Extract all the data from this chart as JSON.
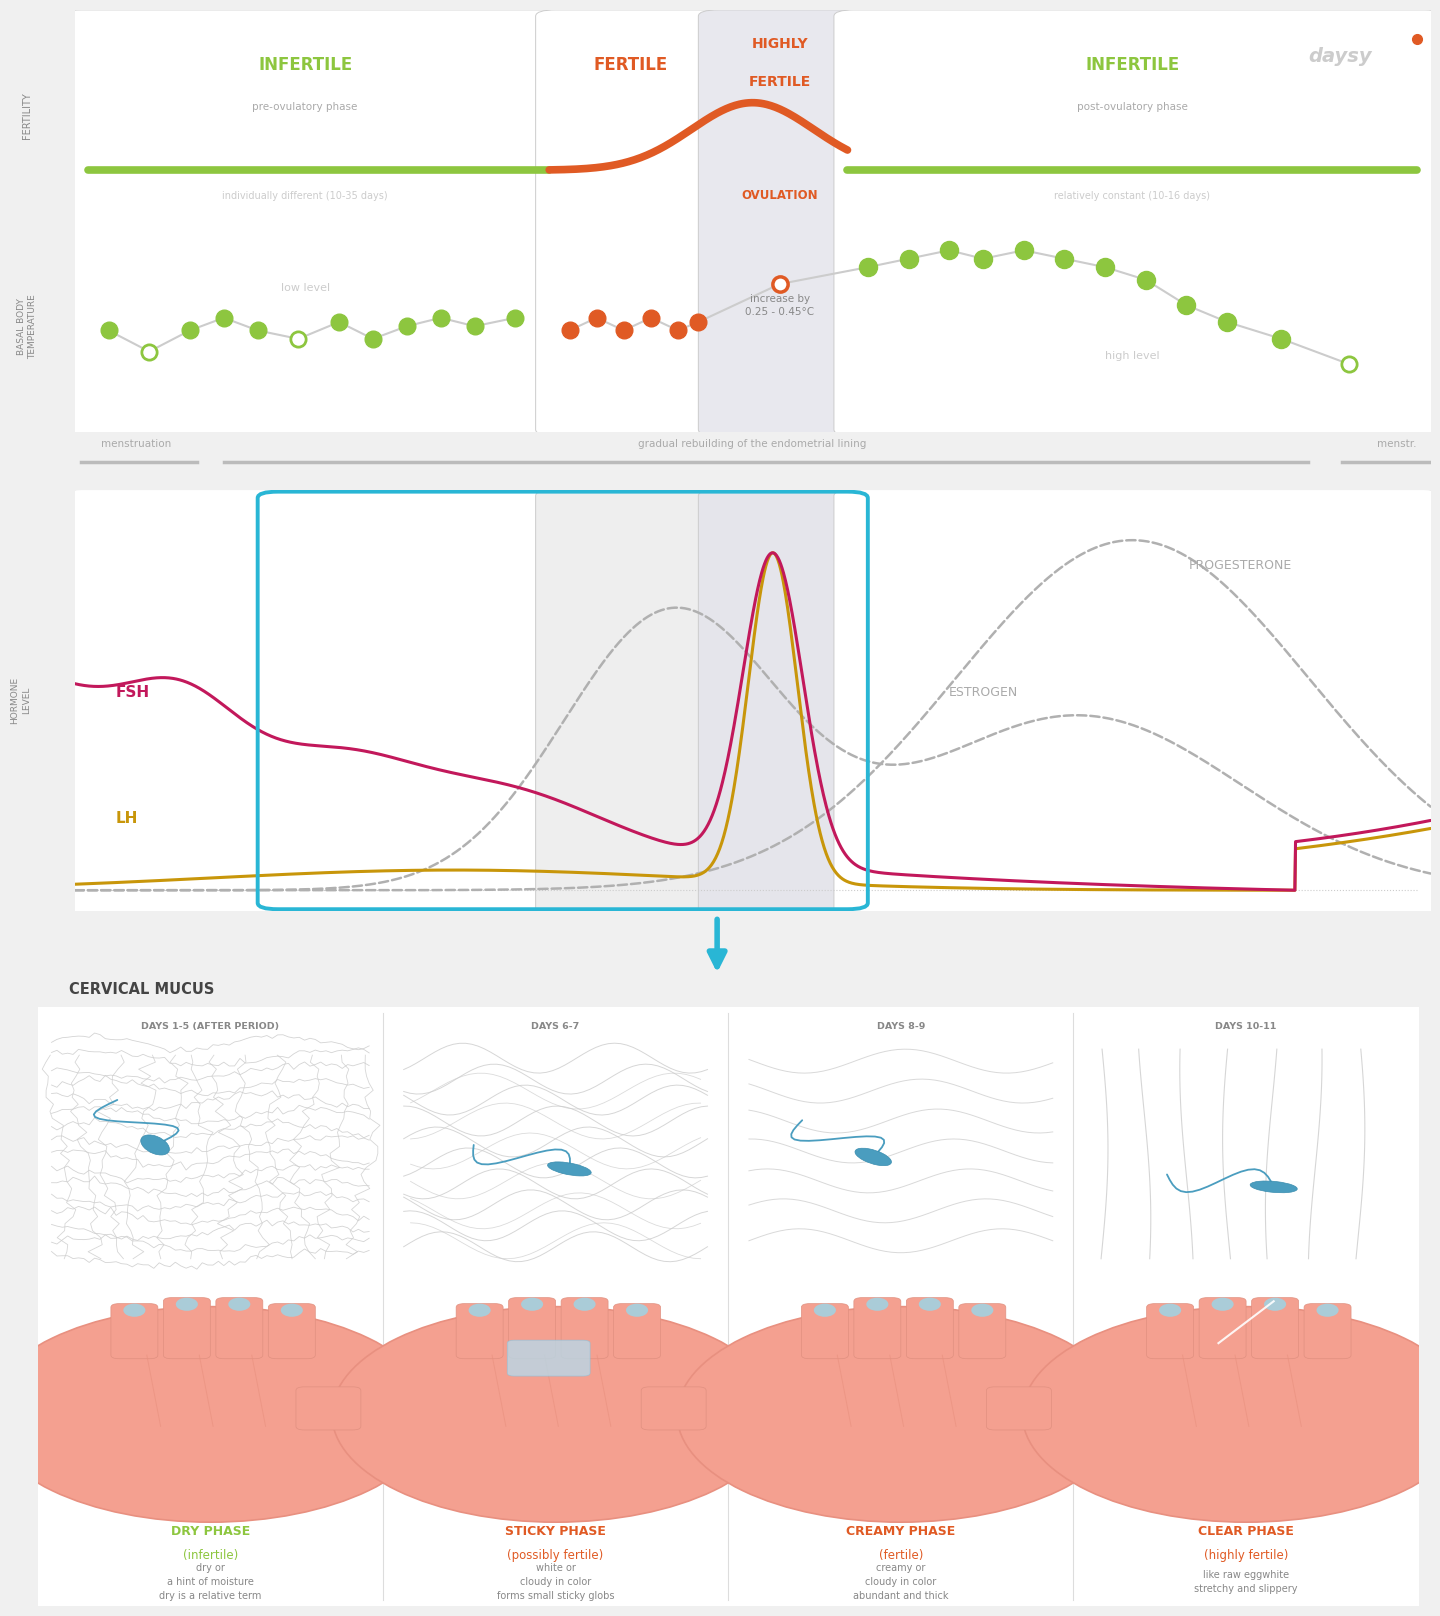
{
  "bg_color": "#f0f0f0",
  "green": "#8dc63f",
  "orange": "#e05a24",
  "blue": "#29b6d5",
  "magenta": "#c2185b",
  "gold": "#c8960a",
  "gray_text": "#aaaaaa",
  "gray_border": "#cccccc",
  "gray_dark": "#666666",
  "cerv_days": [
    "DAYS 1-5 (AFTER PERIOD)",
    "DAYS 6-7",
    "DAYS 8-9",
    "DAYS 10-11"
  ],
  "cerv_phase_names": [
    "DRY PHASE",
    "STICKY PHASE",
    "CREAMY PHASE",
    "CLEAR PHASE"
  ],
  "cerv_phase_sub": [
    "(infertile)",
    "(possibly fertile)",
    "(fertile)",
    "(highly fertile)"
  ],
  "cerv_phase_colors": [
    "#8dc63f",
    "#e05a24",
    "#e05a24",
    "#e05a24"
  ],
  "cerv_desc": [
    "dry or\na hint of moisture\ndry is a relative term",
    "white or\ncloudy in color\nforms small sticky globs",
    "creamy or\ncloudy in color\nabundant and thick",
    "like raw eggwhite\nstretchy and slippery"
  ]
}
